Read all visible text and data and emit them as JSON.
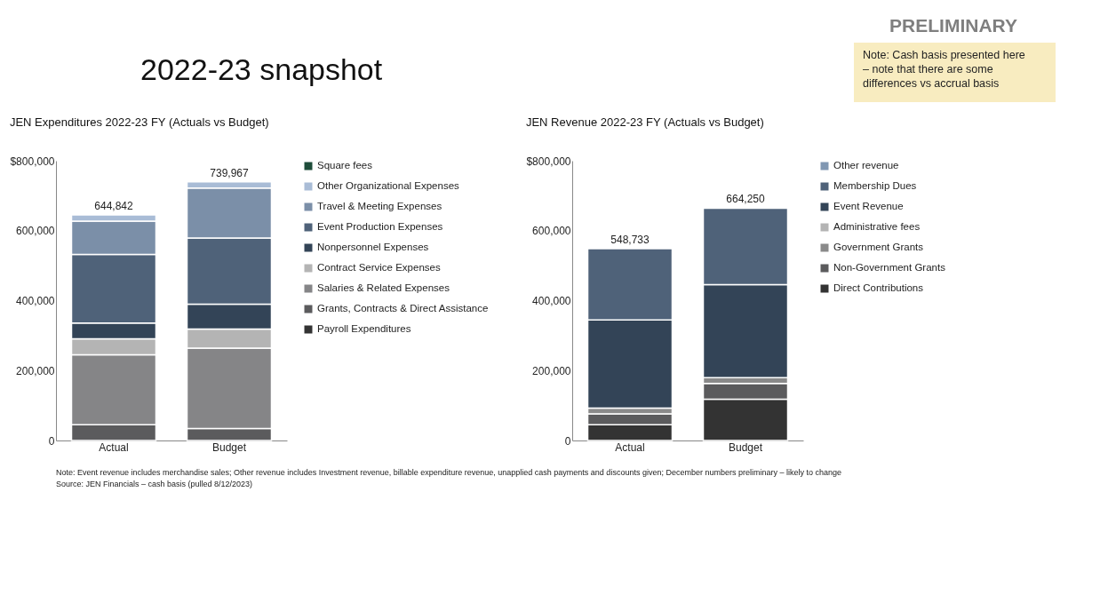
{
  "chart_data": [
    {
      "type": "other",
      "title": "2022-23 snapshot",
      "annotations": [
        "PRELIMINARY",
        "Note: Cash basis presented here – note that there are some differences vs accrual basis"
      ]
    },
    {
      "type": "bar",
      "stacked": true,
      "title": "JEN Expenditures 2022-23 FY (Actuals vs Budget)",
      "categories": [
        "Actual",
        "Budget"
      ],
      "ylim": [
        0,
        800000
      ],
      "yticks": [
        0,
        {
          "value": 200000,
          "label": "200,000"
        },
        {
          "value": 400000,
          "label": "400,000"
        },
        {
          "value": 600000,
          "label": "600,000"
        },
        {
          "value": 800000,
          "label": "$800,000"
        }
      ],
      "legend": "right",
      "totals": [
        "644,842",
        "739,967"
      ],
      "series": [
        {
          "name": "Payroll Expenditures",
          "color": "#333333",
          "values": [
            null,
            null
          ]
        },
        {
          "name": "Grants, Contracts & Direct Assistance",
          "color": "#5b5b5d",
          "values": [
            45000,
            34000
          ]
        },
        {
          "name": "Salaries & Related Expenses",
          "color": "#858587",
          "values": [
            200000,
            230000
          ]
        },
        {
          "name": "Contract Service Expenses",
          "color": "#b4b4b4",
          "values": [
            46000,
            55000
          ]
        },
        {
          "name": "Nonpersonnel Expenses",
          "color": "#334457",
          "values": [
            45000,
            71000
          ]
        },
        {
          "name": "Event Production Expenses",
          "color": "#4f6279",
          "values": [
            196000,
            189000
          ]
        },
        {
          "name": "Travel & Meeting Expenses",
          "color": "#7b8fa8",
          "values": [
            95000,
            143000
          ]
        },
        {
          "name": "Other Organizational Expenses",
          "color": "#a9bcd6",
          "values": [
            17842,
            17967
          ]
        },
        {
          "name": "Square fees",
          "color": "#1e4d3a",
          "values": [
            null,
            null
          ]
        }
      ]
    },
    {
      "type": "bar",
      "stacked": true,
      "title": "JEN Revenue 2022-23 FY (Actuals vs Budget)",
      "categories": [
        "Actual",
        "Budget"
      ],
      "ylim": [
        0,
        800000
      ],
      "yticks": [
        0,
        {
          "value": 200000,
          "label": "200,000"
        },
        {
          "value": 400000,
          "label": "400,000"
        },
        {
          "value": 600000,
          "label": "600,000"
        },
        {
          "value": 800000,
          "label": "$800,000"
        }
      ],
      "legend": "right",
      "totals": [
        "548,733",
        "664,250"
      ],
      "annotations": [
        "Note: Event revenue includes merchandise sales; Other revenue includes Investment revenue, billable expenditure revenue, unapplied cash payments and discounts given; December numbers preliminary – likely to change",
        "Source: JEN Financials – cash basis (pulled 8/12/2023)"
      ],
      "series": [
        {
          "name": "Direct Contributions",
          "color": "#333333",
          "values": [
            45000,
            118000
          ]
        },
        {
          "name": "Non-Government Grants",
          "color": "#5b5b5d",
          "values": [
            31000,
            45000
          ]
        },
        {
          "name": "Government Grants",
          "color": "#8a8a8a",
          "values": [
            17000,
            17000
          ]
        },
        {
          "name": "Administrative fees",
          "color": "#b4b4b4",
          "values": [
            null,
            null
          ]
        },
        {
          "name": "Event Revenue",
          "color": "#334457",
          "values": [
            252000,
            266000
          ]
        },
        {
          "name": "Membership Dues",
          "color": "#4f6279",
          "values": [
            203733,
            218250
          ]
        },
        {
          "name": "Other revenue",
          "color": "#8097b2",
          "values": [
            null,
            null
          ]
        }
      ]
    }
  ]
}
